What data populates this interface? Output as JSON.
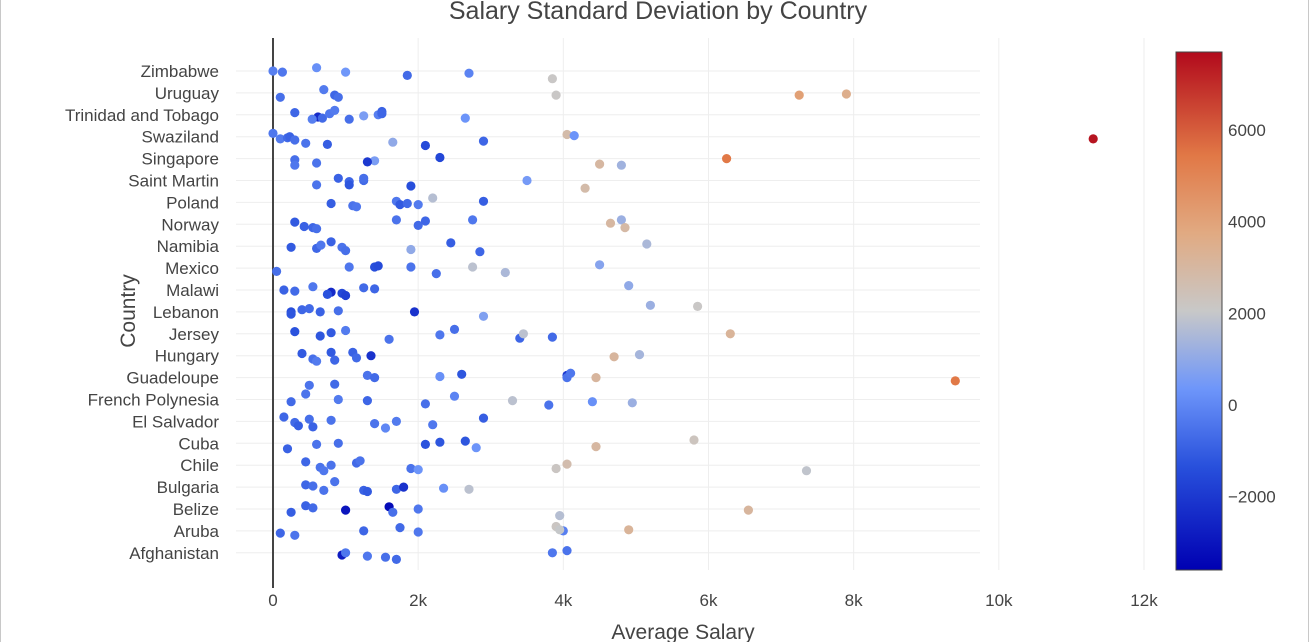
{
  "chart_data": {
    "type": "scatter",
    "title": "Salary Standard Deviation by Country",
    "xlabel": "Average Salary",
    "ylabel": "Country",
    "xlim": [
      -500,
      12000
    ],
    "x_tick_values": [
      0,
      2000,
      4000,
      6000,
      8000,
      10000,
      12000
    ],
    "x_tick_labels": [
      "0",
      "2k",
      "4k",
      "6k",
      "8k",
      "10k",
      "12k"
    ],
    "categories": [
      "Zimbabwe",
      "Uruguay",
      "Trinidad and Tobago",
      "Swaziland",
      "Singapore",
      "Saint Martin",
      "Poland",
      "Norway",
      "Namibia",
      "Mexico",
      "Malawi",
      "Lebanon",
      "Jersey",
      "Hungary",
      "Guadeloupe",
      "French Polynesia",
      "El Salvador",
      "Cuba",
      "Chile",
      "Bulgaria",
      "Belize",
      "Aruba",
      "Afghanistan"
    ],
    "colorscale": {
      "name": "coolwarm",
      "cmin": -3600,
      "cmax": 7700,
      "tick_values": [
        -2000,
        0,
        2000,
        4000,
        6000
      ],
      "tick_labels": [
        "−2000",
        "0",
        "2000",
        "4000",
        "6000"
      ]
    },
    "points": [
      [
        "Zimbabwe",
        0,
        -200,
        0
      ],
      [
        "Zimbabwe",
        130,
        -400,
        0.1
      ],
      [
        "Zimbabwe",
        600,
        200,
        -0.3
      ],
      [
        "Zimbabwe",
        1000,
        400,
        0.1
      ],
      [
        "Zimbabwe",
        1850,
        -700,
        0.4
      ],
      [
        "Zimbabwe",
        2700,
        -100,
        0.2
      ],
      [
        "Zimbabwe",
        3850,
        2100,
        0.7
      ],
      [
        "Uruguay",
        100,
        -600,
        0.4
      ],
      [
        "Uruguay",
        700,
        -300,
        -0.3
      ],
      [
        "Uruguay",
        850,
        -800,
        0.2
      ],
      [
        "Uruguay",
        900,
        -600,
        0.4
      ],
      [
        "Uruguay",
        3900,
        2100,
        0.2
      ],
      [
        "Uruguay",
        7250,
        4100,
        0.2
      ],
      [
        "Uruguay",
        7900,
        3500,
        0.1
      ],
      [
        "Trinidad and Tobago",
        300,
        -800,
        -0.2
      ],
      [
        "Trinidad and Tobago",
        620,
        -2400,
        0.2
      ],
      [
        "Trinidad and Tobago",
        680,
        -700,
        0.3
      ],
      [
        "Trinidad and Tobago",
        780,
        -400,
        -0.1
      ],
      [
        "Trinidad and Tobago",
        850,
        -300,
        -0.4
      ],
      [
        "Trinidad and Tobago",
        1050,
        -600,
        0.4
      ],
      [
        "Trinidad and Tobago",
        1250,
        600,
        0.1
      ],
      [
        "Trinidad and Tobago",
        1450,
        -200,
        0
      ],
      [
        "Trinidad and Tobago",
        1500,
        -900,
        -0.3
      ],
      [
        "Trinidad and Tobago",
        1500,
        -800,
        -0.1
      ],
      [
        "Trinidad and Tobago",
        2650,
        300,
        0.3
      ],
      [
        "Trinidad and Tobago",
        540,
        -200,
        0.4
      ],
      [
        "Swaziland",
        0,
        -400,
        -0.3
      ],
      [
        "Swaziland",
        100,
        -300,
        0.2
      ],
      [
        "Swaziland",
        200,
        -700,
        0.1
      ],
      [
        "Swaziland",
        230,
        -900,
        0
      ],
      [
        "Swaziland",
        300,
        -600,
        0.3
      ],
      [
        "Swaziland",
        450,
        -500,
        0.6
      ],
      [
        "Swaziland",
        750,
        -1000,
        0.7
      ],
      [
        "Swaziland",
        1650,
        1000,
        0.5
      ],
      [
        "Swaziland",
        2100,
        -1500,
        0.8
      ],
      [
        "Swaziland",
        2900,
        -800,
        0.4
      ],
      [
        "Swaziland",
        4050,
        2800,
        -0.2
      ],
      [
        "Swaziland",
        4150,
        300,
        -0.1
      ],
      [
        "Swaziland",
        11300,
        7500,
        0.2
      ],
      [
        "Singapore",
        300,
        -600,
        0.1
      ],
      [
        "Singapore",
        600,
        -500,
        0.4
      ],
      [
        "Singapore",
        1400,
        600,
        0.2
      ],
      [
        "Singapore",
        1300,
        -2000,
        0.3
      ],
      [
        "Singapore",
        2300,
        -1600,
        -0.1
      ],
      [
        "Singapore",
        4500,
        3000,
        0.5
      ],
      [
        "Singapore",
        4800,
        1300,
        0.6
      ],
      [
        "Singapore",
        6250,
        5400,
        0
      ],
      [
        "Singapore",
        300,
        -400,
        0.6
      ],
      [
        "Saint Martin",
        600,
        -500,
        0.4
      ],
      [
        "Saint Martin",
        900,
        -900,
        -0.2
      ],
      [
        "Saint Martin",
        1050,
        -800,
        0.1
      ],
      [
        "Saint Martin",
        1050,
        -1200,
        0.4
      ],
      [
        "Saint Martin",
        1250,
        -700,
        0
      ],
      [
        "Saint Martin",
        1250,
        -600,
        -0.2
      ],
      [
        "Saint Martin",
        1900,
        -1400,
        0.5
      ],
      [
        "Saint Martin",
        3500,
        500,
        0
      ],
      [
        "Saint Martin",
        4300,
        2800,
        0.7
      ],
      [
        "Poland",
        800,
        -1000,
        0.1
      ],
      [
        "Poland",
        1100,
        -500,
        0.3
      ],
      [
        "Poland",
        1150,
        -400,
        0.4
      ],
      [
        "Poland",
        1700,
        -400,
        -0.1
      ],
      [
        "Poland",
        1750,
        -1100,
        0.2
      ],
      [
        "Poland",
        1850,
        -700,
        0.1
      ],
      [
        "Poland",
        2000,
        -300,
        0.2
      ],
      [
        "Poland",
        2200,
        1700,
        -0.4
      ],
      [
        "Poland",
        2900,
        -1000,
        -0.1
      ],
      [
        "Norway",
        300,
        -1100,
        -0.2
      ],
      [
        "Norway",
        430,
        -900,
        0.2
      ],
      [
        "Norway",
        550,
        -800,
        0.3
      ],
      [
        "Norway",
        600,
        -600,
        0.4
      ],
      [
        "Norway",
        1700,
        -500,
        -0.4
      ],
      [
        "Norway",
        2000,
        -700,
        0.1
      ],
      [
        "Norway",
        2100,
        -800,
        -0.3
      ],
      [
        "Norway",
        2750,
        -400,
        -0.4
      ],
      [
        "Norway",
        4650,
        3000,
        -0.1
      ],
      [
        "Norway",
        4800,
        1200,
        -0.4
      ],
      [
        "Norway",
        4850,
        2900,
        0.3
      ],
      [
        "Namibia",
        250,
        -1100,
        0.1
      ],
      [
        "Namibia",
        600,
        -800,
        0.2
      ],
      [
        "Namibia",
        800,
        -900,
        -0.4
      ],
      [
        "Namibia",
        950,
        -500,
        0.1
      ],
      [
        "Namibia",
        1000,
        -600,
        0.4
      ],
      [
        "Namibia",
        1900,
        1000,
        0.3
      ],
      [
        "Namibia",
        2450,
        -1000,
        -0.3
      ],
      [
        "Namibia",
        2850,
        -800,
        0.5
      ],
      [
        "Namibia",
        5150,
        1500,
        -0.2
      ],
      [
        "Namibia",
        660,
        -400,
        -0.1
      ],
      [
        "Mexico",
        50,
        -600,
        0.3
      ],
      [
        "Mexico",
        1050,
        -400,
        -0.1
      ],
      [
        "Mexico",
        1400,
        -1400,
        -0.1
      ],
      [
        "Mexico",
        1450,
        -1500,
        -0.2
      ],
      [
        "Mexico",
        1900,
        -500,
        -0.1
      ],
      [
        "Mexico",
        2250,
        -600,
        0.5
      ],
      [
        "Mexico",
        2750,
        1800,
        -0.1
      ],
      [
        "Mexico",
        3200,
        1500,
        0.4
      ],
      [
        "Mexico",
        4500,
        800,
        -0.3
      ],
      [
        "Malawi",
        150,
        -900,
        0
      ],
      [
        "Malawi",
        300,
        -700,
        0.1
      ],
      [
        "Malawi",
        1250,
        -700,
        -0.2
      ],
      [
        "Malawi",
        1400,
        -800,
        -0.1
      ],
      [
        "Malawi",
        4900,
        1000,
        -0.4
      ],
      [
        "Malawi",
        550,
        -400,
        -0.3
      ],
      [
        "Malawi",
        800,
        -2400,
        0.2
      ],
      [
        "Malawi",
        950,
        -1600,
        0.3
      ],
      [
        "Malawi",
        1000,
        -1800,
        0.5
      ],
      [
        "Malawi",
        750,
        -1300,
        0.4
      ],
      [
        "Lebanon",
        250,
        -1400,
        0
      ],
      [
        "Lebanon",
        250,
        -1200,
        0.2
      ],
      [
        "Lebanon",
        400,
        -800,
        -0.2
      ],
      [
        "Lebanon",
        500,
        -700,
        -0.3
      ],
      [
        "Lebanon",
        650,
        -900,
        0
      ],
      [
        "Lebanon",
        900,
        -600,
        -0.1
      ],
      [
        "Lebanon",
        1950,
        -2200,
        0
      ],
      [
        "Lebanon",
        2900,
        700,
        0.4
      ],
      [
        "Lebanon",
        5200,
        1200,
        -0.6
      ],
      [
        "Lebanon",
        5850,
        2100,
        -0.5
      ],
      [
        "Jersey",
        300,
        -1300,
        -0.2
      ],
      [
        "Jersey",
        800,
        -1100,
        -0.1
      ],
      [
        "Jersey",
        1000,
        -300,
        -0.3
      ],
      [
        "Jersey",
        1600,
        -500,
        0.5
      ],
      [
        "Jersey",
        2300,
        -400,
        0.1
      ],
      [
        "Jersey",
        2500,
        -600,
        -0.4
      ],
      [
        "Jersey",
        3400,
        -800,
        0.4
      ],
      [
        "Jersey",
        3450,
        1800,
        0
      ],
      [
        "Jersey",
        3850,
        -700,
        0.3
      ],
      [
        "Jersey",
        6300,
        3200,
        0
      ],
      [
        "Jersey",
        650,
        -1200,
        0.2
      ],
      [
        "Hungary",
        400,
        -1100,
        -0.2
      ],
      [
        "Hungary",
        550,
        -600,
        0.3
      ],
      [
        "Hungary",
        800,
        -1100,
        -0.3
      ],
      [
        "Hungary",
        850,
        -800,
        0.4
      ],
      [
        "Hungary",
        1100,
        -900,
        -0.3
      ],
      [
        "Hungary",
        1150,
        -700,
        0.2
      ],
      [
        "Hungary",
        1350,
        -2200,
        0
      ],
      [
        "Hungary",
        4700,
        3100,
        0.1
      ],
      [
        "Hungary",
        5050,
        1400,
        -0.1
      ],
      [
        "Hungary",
        600,
        -300,
        0.5
      ],
      [
        "Guadeloupe",
        500,
        -500,
        0.7
      ],
      [
        "Guadeloupe",
        850,
        -700,
        0.6
      ],
      [
        "Guadeloupe",
        1300,
        -500,
        -0.2
      ],
      [
        "Guadeloupe",
        1400,
        -700,
        0
      ],
      [
        "Guadeloupe",
        2300,
        200,
        -0.1
      ],
      [
        "Guadeloupe",
        2600,
        -1200,
        -0.3
      ],
      [
        "Guadeloupe",
        4050,
        -2000,
        -0.2
      ],
      [
        "Guadeloupe",
        4050,
        -500,
        0
      ],
      [
        "Guadeloupe",
        4100,
        -400,
        -0.4
      ],
      [
        "Guadeloupe",
        4450,
        3100,
        0
      ],
      [
        "Guadeloupe",
        9400,
        5400,
        0.3
      ],
      [
        "French Polynesia",
        250,
        -700,
        0.2
      ],
      [
        "French Polynesia",
        450,
        -500,
        -0.5
      ],
      [
        "French Polynesia",
        900,
        -300,
        0
      ],
      [
        "French Polynesia",
        1300,
        -800,
        0.1
      ],
      [
        "French Polynesia",
        2100,
        -600,
        0.4
      ],
      [
        "French Polynesia",
        2500,
        -100,
        -0.3
      ],
      [
        "French Polynesia",
        3300,
        1800,
        0.1
      ],
      [
        "French Polynesia",
        3800,
        -500,
        0.5
      ],
      [
        "French Polynesia",
        4400,
        200,
        0.2
      ],
      [
        "French Polynesia",
        4950,
        1200,
        0.3
      ],
      [
        "El Salvador",
        150,
        -800,
        -0.4
      ],
      [
        "El Salvador",
        300,
        -700,
        0.1
      ],
      [
        "El Salvador",
        350,
        -1000,
        0.4
      ],
      [
        "El Salvador",
        500,
        -600,
        -0.2
      ],
      [
        "El Salvador",
        550,
        -900,
        0.5
      ],
      [
        "El Salvador",
        800,
        -500,
        -0.1
      ],
      [
        "El Salvador",
        1400,
        -500,
        0.2
      ],
      [
        "El Salvador",
        1550,
        0,
        0.6
      ],
      [
        "El Salvador",
        1700,
        -300,
        0
      ],
      [
        "El Salvador",
        2200,
        -400,
        0.3
      ],
      [
        "El Salvador",
        2900,
        -1000,
        -0.3
      ],
      [
        "Cuba",
        200,
        -900,
        0.5
      ],
      [
        "Cuba",
        600,
        -500,
        0.1
      ],
      [
        "Cuba",
        900,
        -600,
        0
      ],
      [
        "Cuba",
        2100,
        -1300,
        0.1
      ],
      [
        "Cuba",
        2300,
        -1200,
        -0.1
      ],
      [
        "Cuba",
        2650,
        -1200,
        -0.2
      ],
      [
        "Cuba",
        2800,
        300,
        0.4
      ],
      [
        "Cuba",
        4450,
        3000,
        0.3
      ],
      [
        "Cuba",
        5800,
        2300,
        -0.3
      ],
      [
        "Chile",
        650,
        -500,
        0.2
      ],
      [
        "Chile",
        700,
        -400,
        0.5
      ],
      [
        "Chile",
        800,
        -500,
        0
      ],
      [
        "Chile",
        1150,
        -700,
        -0.2
      ],
      [
        "Chile",
        1200,
        -500,
        -0.4
      ],
      [
        "Chile",
        1900,
        -500,
        0.3
      ],
      [
        "Chile",
        2000,
        300,
        0.4
      ],
      [
        "Chile",
        3900,
        2200,
        0.3
      ],
      [
        "Chile",
        4050,
        2700,
        -0.1
      ],
      [
        "Chile",
        7350,
        1900,
        0.5
      ],
      [
        "Chile",
        450,
        -800,
        -0.3
      ],
      [
        "Bulgaria",
        450,
        -800,
        -0.2
      ],
      [
        "Bulgaria",
        550,
        -600,
        -0.1
      ],
      [
        "Bulgaria",
        700,
        -500,
        0.3
      ],
      [
        "Bulgaria",
        850,
        -500,
        -0.5
      ],
      [
        "Bulgaria",
        1250,
        -900,
        0.3
      ],
      [
        "Bulgaria",
        1300,
        -1100,
        0.4
      ],
      [
        "Bulgaria",
        1700,
        -800,
        0.2
      ],
      [
        "Bulgaria",
        1800,
        -2200,
        0
      ],
      [
        "Bulgaria",
        2350,
        200,
        0.1
      ],
      [
        "Bulgaria",
        2700,
        1800,
        0.2
      ],
      [
        "Belize",
        250,
        -1000,
        0.3
      ],
      [
        "Belize",
        450,
        -900,
        -0.3
      ],
      [
        "Belize",
        550,
        -700,
        -0.1
      ],
      [
        "Belize",
        1000,
        -3000,
        0.1
      ],
      [
        "Belize",
        1600,
        -3300,
        -0.2
      ],
      [
        "Belize",
        1650,
        -600,
        0.3
      ],
      [
        "Belize",
        2000,
        -400,
        0
      ],
      [
        "Belize",
        3950,
        1700,
        0.6
      ],
      [
        "Belize",
        6550,
        3100,
        0.1
      ],
      [
        "Aruba",
        100,
        -800,
        0.2
      ],
      [
        "Aruba",
        300,
        -500,
        0.4
      ],
      [
        "Aruba",
        1250,
        -800,
        0
      ],
      [
        "Aruba",
        1750,
        -700,
        -0.3
      ],
      [
        "Aruba",
        2000,
        -400,
        0.1
      ],
      [
        "Aruba",
        3900,
        2200,
        -0.4
      ],
      [
        "Aruba",
        4000,
        -200,
        0
      ],
      [
        "Aruba",
        4900,
        3200,
        -0.1
      ],
      [
        "Aruba",
        3950,
        2000,
        -0.1
      ],
      [
        "Afghanistan",
        950,
        -2800,
        0.2
      ],
      [
        "Afghanistan",
        1000,
        -400,
        0
      ],
      [
        "Afghanistan",
        1300,
        -400,
        0.3
      ],
      [
        "Afghanistan",
        1550,
        -600,
        0.4
      ],
      [
        "Afghanistan",
        1700,
        -700,
        0.6
      ],
      [
        "Afghanistan",
        3850,
        -400,
        0
      ],
      [
        "Afghanistan",
        4050,
        -500,
        -0.2
      ]
    ]
  }
}
